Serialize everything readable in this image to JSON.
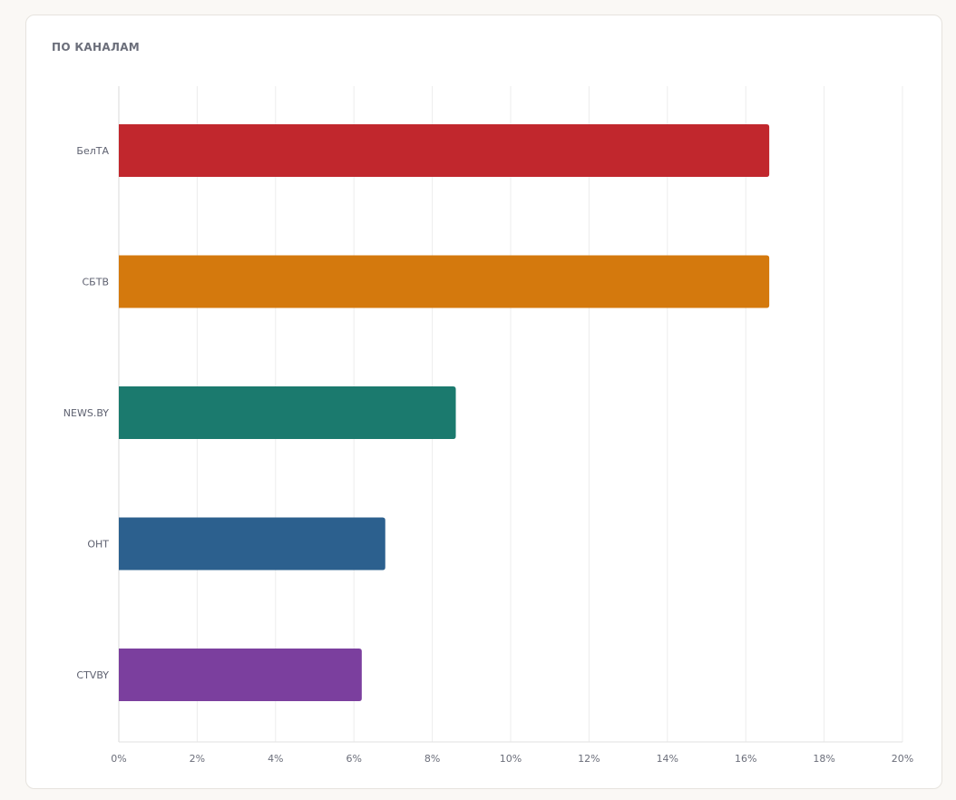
{
  "panel": {
    "title": "ПО КАНАЛАМ"
  },
  "chart_data": {
    "type": "bar",
    "orientation": "horizontal",
    "title": "",
    "xlabel": "",
    "ylabel": "",
    "categories": [
      "БелТА",
      "СБТВ",
      "NEWS.BY",
      "ОНТ",
      "CTVBY"
    ],
    "values": [
      16.6,
      16.6,
      8.6,
      6.8,
      6.2
    ],
    "colors": [
      "#c1272d",
      "#d4790d",
      "#1b7a6e",
      "#2c608e",
      "#7b3f9e"
    ],
    "xlim": [
      0,
      20
    ],
    "x_ticks": [
      "0%",
      "2%",
      "4%",
      "6%",
      "8%",
      "10%",
      "12%",
      "14%",
      "16%",
      "18%",
      "20%"
    ],
    "grid": true,
    "legend": "none"
  }
}
